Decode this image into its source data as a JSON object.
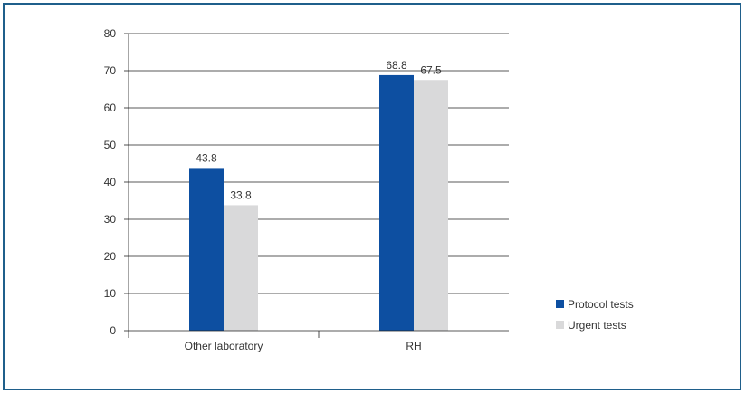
{
  "chart_data": {
    "type": "bar",
    "categories": [
      "Other laboratory",
      "RH"
    ],
    "series": [
      {
        "name": "Protocol tests",
        "values": [
          43.8,
          68.8
        ],
        "color": "#0d4fa1"
      },
      {
        "name": "Urgent tests",
        "values": [
          33.8,
          67.5
        ],
        "color": "#d9d9da"
      }
    ],
    "ylim": [
      0,
      80
    ],
    "yticks": [
      0,
      10,
      20,
      30,
      40,
      50,
      60,
      70,
      80
    ],
    "grid": true,
    "legend_position": "bottom-right",
    "title": "",
    "xlabel": "",
    "ylabel": ""
  }
}
